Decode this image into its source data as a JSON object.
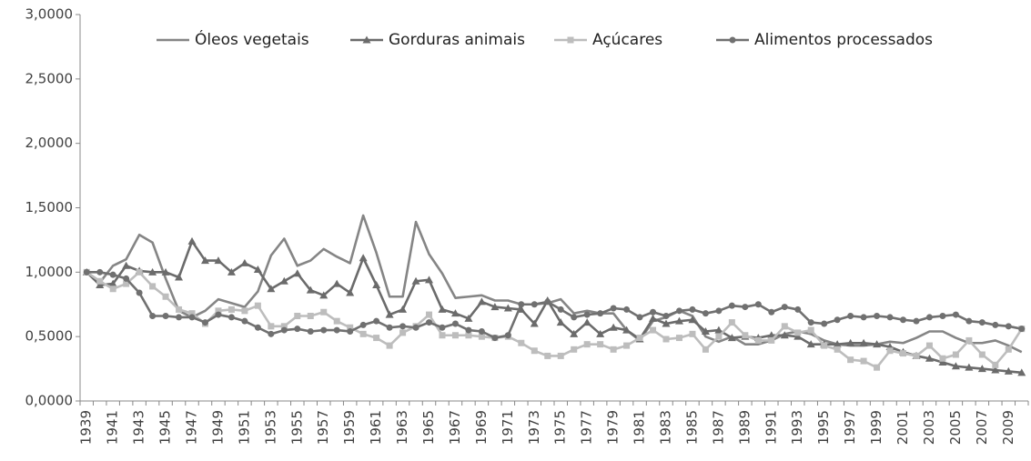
{
  "chart_data": {
    "type": "line",
    "categories": [
      "1939",
      null,
      "1941",
      null,
      "1943",
      null,
      "1945",
      null,
      "1947",
      null,
      "1949",
      null,
      "1951",
      null,
      "1953",
      null,
      "1955",
      null,
      "1957",
      null,
      "1959",
      null,
      "1961",
      null,
      "1963",
      null,
      "1965",
      null,
      "1967",
      null,
      "1969",
      null,
      "1971",
      null,
      "1973",
      null,
      "1975",
      null,
      "1977",
      null,
      "1979",
      null,
      "1981",
      null,
      "1983",
      null,
      "1985",
      null,
      "1987",
      null,
      "1989",
      null,
      "1991",
      null,
      "1993",
      null,
      "1995",
      null,
      "1997",
      null,
      "1999",
      null,
      "2001",
      null,
      "2003",
      null,
      "2005",
      null,
      "2007",
      null,
      "2009",
      null
    ],
    "series": [
      {
        "name": "Óleos vegetais",
        "color": "#858585",
        "marker": "none",
        "values": [
          1.0,
          0.92,
          1.05,
          1.1,
          1.29,
          1.23,
          0.95,
          0.7,
          0.65,
          0.7,
          0.79,
          0.76,
          0.73,
          0.85,
          1.13,
          1.26,
          1.05,
          1.09,
          1.18,
          1.12,
          1.07,
          1.44,
          1.15,
          0.81,
          0.81,
          1.39,
          1.14,
          0.99,
          0.8,
          0.81,
          0.82,
          0.78,
          0.78,
          0.75,
          0.75,
          0.76,
          0.79,
          0.68,
          0.7,
          0.68,
          0.68,
          0.55,
          0.47,
          0.62,
          0.65,
          0.7,
          0.66,
          0.5,
          0.46,
          0.5,
          0.44,
          0.44,
          0.47,
          0.52,
          0.54,
          0.52,
          0.47,
          0.44,
          0.43,
          0.43,
          0.44,
          0.46,
          0.45,
          0.49,
          0.54,
          0.54,
          0.49,
          0.45,
          0.45,
          0.47,
          0.43,
          0.38
        ]
      },
      {
        "name": "Gorduras animais",
        "color": "#6b6b6b",
        "marker": "triangle",
        "values": [
          1.0,
          0.9,
          0.91,
          1.05,
          1.01,
          1.0,
          1.0,
          0.96,
          1.24,
          1.09,
          1.09,
          1.0,
          1.07,
          1.02,
          0.87,
          0.93,
          0.99,
          0.86,
          0.82,
          0.91,
          0.84,
          1.11,
          0.9,
          0.67,
          0.71,
          0.93,
          0.94,
          0.71,
          0.68,
          0.64,
          0.77,
          0.73,
          0.72,
          0.71,
          0.6,
          0.78,
          0.61,
          0.52,
          0.61,
          0.52,
          0.57,
          0.55,
          0.48,
          0.64,
          0.6,
          0.62,
          0.63,
          0.54,
          0.55,
          0.49,
          0.5,
          0.49,
          0.51,
          0.51,
          0.5,
          0.44,
          0.44,
          0.44,
          0.45,
          0.45,
          0.44,
          0.42,
          0.38,
          0.35,
          0.33,
          0.3,
          0.27,
          0.26,
          0.25,
          0.24,
          0.23,
          0.22
        ]
      },
      {
        "name": "Açúcares",
        "color": "#bdbdbd",
        "marker": "square",
        "values": [
          1.0,
          0.93,
          0.87,
          0.91,
          1.0,
          0.89,
          0.81,
          0.71,
          0.68,
          0.6,
          0.7,
          0.71,
          0.7,
          0.74,
          0.58,
          0.58,
          0.66,
          0.66,
          0.69,
          0.62,
          0.57,
          0.52,
          0.49,
          0.43,
          0.53,
          0.58,
          0.67,
          0.51,
          0.51,
          0.51,
          0.5,
          0.49,
          0.5,
          0.45,
          0.39,
          0.35,
          0.35,
          0.4,
          0.44,
          0.44,
          0.4,
          0.43,
          0.49,
          0.55,
          0.48,
          0.49,
          0.52,
          0.4,
          0.5,
          0.61,
          0.51,
          0.47,
          0.47,
          0.58,
          0.53,
          0.55,
          0.43,
          0.4,
          0.32,
          0.31,
          0.26,
          0.39,
          0.37,
          0.35,
          0.43,
          0.33,
          0.36,
          0.47,
          0.36,
          0.28,
          0.4,
          0.56
        ]
      },
      {
        "name": "Alimentos processados",
        "color": "#707070",
        "marker": "circle",
        "values": [
          1.0,
          1.0,
          0.98,
          0.95,
          0.84,
          0.66,
          0.66,
          0.65,
          0.65,
          0.61,
          0.67,
          0.65,
          0.62,
          0.57,
          0.52,
          0.55,
          0.56,
          0.54,
          0.55,
          0.55,
          0.54,
          0.59,
          0.62,
          0.57,
          0.58,
          0.57,
          0.61,
          0.57,
          0.6,
          0.55,
          0.54,
          0.49,
          0.51,
          0.75,
          0.75,
          0.77,
          0.71,
          0.65,
          0.67,
          0.68,
          0.72,
          0.71,
          0.65,
          0.69,
          0.66,
          0.7,
          0.71,
          0.68,
          0.7,
          0.74,
          0.73,
          0.75,
          0.69,
          0.73,
          0.71,
          0.61,
          0.6,
          0.63,
          0.66,
          0.65,
          0.66,
          0.65,
          0.63,
          0.62,
          0.65,
          0.66,
          0.67,
          0.62,
          0.61,
          0.59,
          0.58,
          0.56
        ]
      }
    ],
    "ylim": [
      0,
      3
    ],
    "yticks": [
      {
        "value": 0,
        "label": "0,0000"
      },
      {
        "value": 0.5,
        "label": "0,5000"
      },
      {
        "value": 1,
        "label": "1,0000"
      },
      {
        "value": 1.5,
        "label": "1,5000"
      },
      {
        "value": 2,
        "label": "2,0000"
      },
      {
        "value": 2.5,
        "label": "2,5000"
      },
      {
        "value": 3,
        "label": "3,0000"
      }
    ],
    "grid": false,
    "legend": "top"
  }
}
